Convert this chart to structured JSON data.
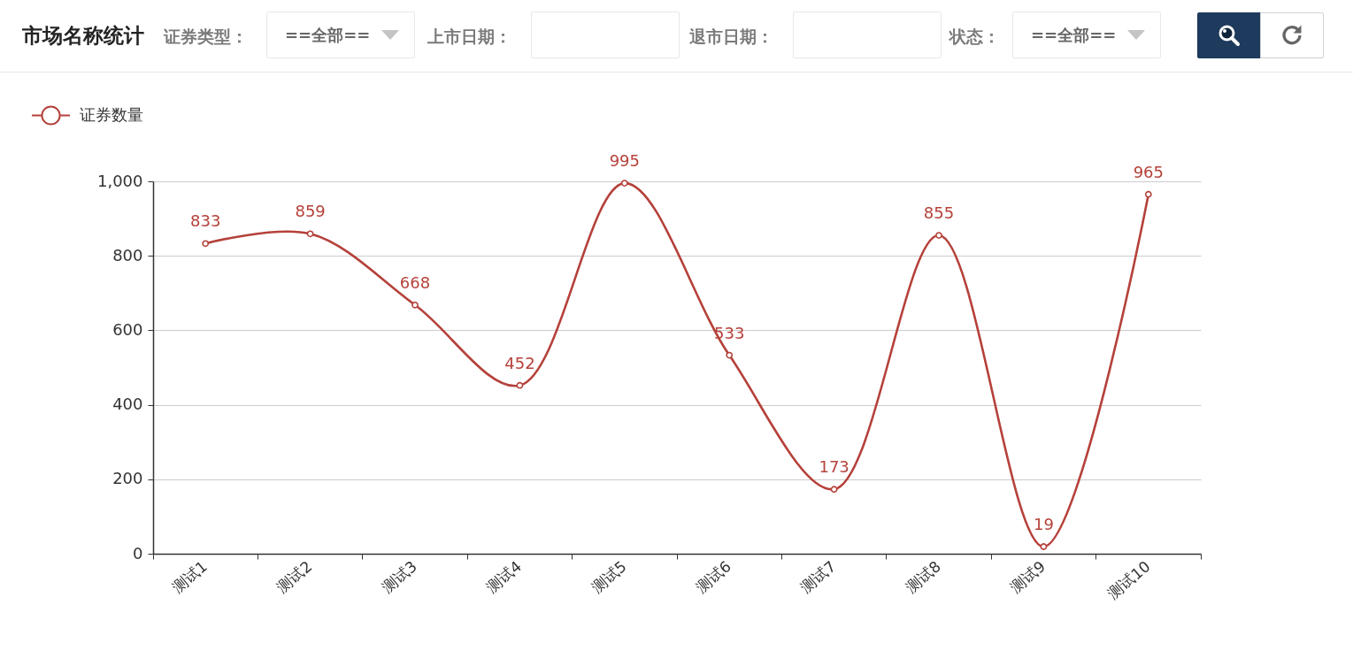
{
  "chart_data": {
    "type": "line",
    "title": "市场名称统计",
    "annotations": [
      "证券类型：",
      "==全部==",
      "上市日期：",
      "退市日期：",
      "状态：",
      "==全部=="
    ],
    "categories": [
      "测试1",
      "测试2",
      "测试3",
      "测试4",
      "测试5",
      "测试6",
      "测试7",
      "测试8",
      "测试9",
      "测试10"
    ],
    "series": [
      {
        "name": "证券数量",
        "color": "#b5413a",
        "values": [
          833,
          859,
          668,
          452,
          995,
          533,
          173,
          855,
          19,
          965
        ]
      }
    ],
    "ylim": [
      0,
      1000
    ],
    "yticks": [
      0,
      200,
      400,
      600,
      800,
      {
        "value": 1000,
        "label": "1,000"
      }
    ],
    "grid": "y",
    "legend": "top left",
    "marker": "circle",
    "line_style": "solid",
    "data_labels": true
  }
}
